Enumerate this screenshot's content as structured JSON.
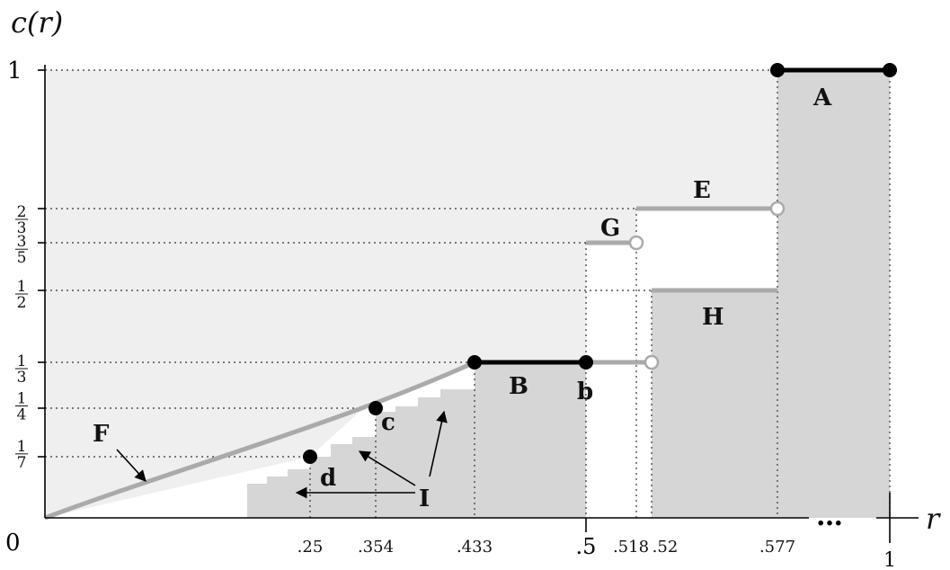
{
  "axes": {
    "y_title": "c(r)",
    "x_title": "r",
    "origin": "0",
    "ellipsis": "…",
    "y_ticks": [
      {
        "value": 1,
        "num": "1",
        "den": ""
      },
      {
        "value": 0.6667,
        "num": "2",
        "den": "3"
      },
      {
        "value": 0.6,
        "num": "3",
        "den": "5"
      },
      {
        "value": 0.5,
        "num": "1",
        "den": "2"
      },
      {
        "value": 0.3333,
        "num": "1",
        "den": "3"
      },
      {
        "value": 0.25,
        "num": "1",
        "den": "4"
      },
      {
        "value": 0.1429,
        "num": "1",
        "den": "7"
      }
    ],
    "x_ticks": [
      {
        "value": 0.25,
        "label": ".25"
      },
      {
        "value": 0.354,
        "label": ".354"
      },
      {
        "value": 0.433,
        "label": ".433"
      },
      {
        "value": 0.5,
        "label": ".5"
      },
      {
        "value": 0.518,
        "label": ".518"
      },
      {
        "value": 0.52,
        "label": ".52"
      },
      {
        "value": 0.577,
        "label": ".577"
      },
      {
        "value": 1,
        "label": "1"
      }
    ]
  },
  "labels": {
    "A": "A",
    "B": "B",
    "E": "E",
    "G": "G",
    "H": "H",
    "F": "F",
    "I": "I",
    "b": "b",
    "c": "c",
    "d": "d"
  },
  "colors": {
    "light_region": "#efefef",
    "dark_region": "#d6d6d6",
    "black_segment": "#000000",
    "gray_segment": "#aaaaaa",
    "dotted": "#333333"
  }
}
